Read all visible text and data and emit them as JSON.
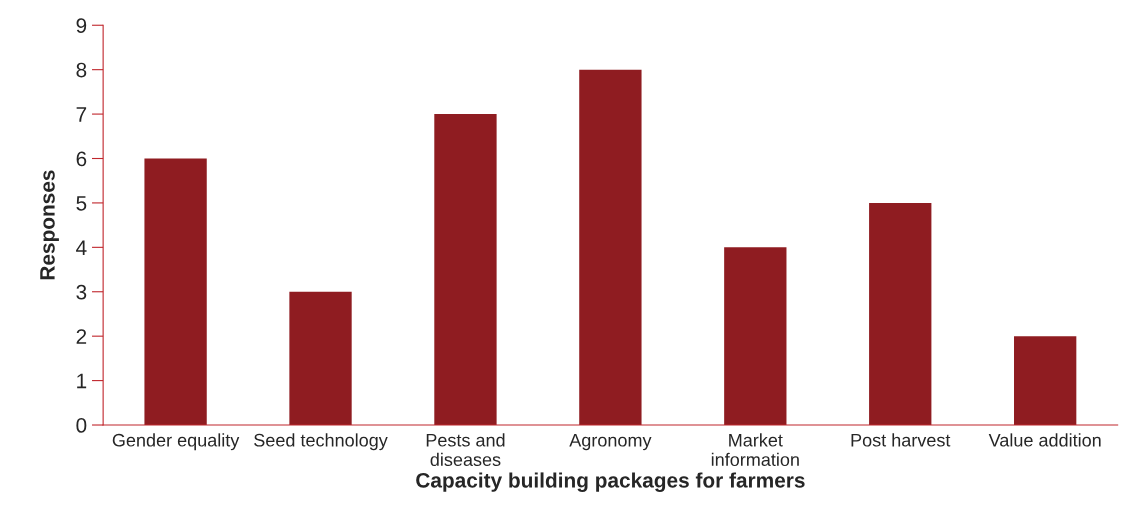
{
  "chart_data": {
    "type": "bar",
    "xlabel": "Capacity building packages for farmers",
    "ylabel": "Responses",
    "categories": [
      "Gender equality",
      "Seed technology",
      "Pests and\ndiseases",
      "Agronomy",
      "Market\ninformation",
      "Post harvest",
      "Value addition"
    ],
    "values": [
      6,
      3,
      7,
      8,
      4,
      5,
      2
    ],
    "color": "#8f1c21",
    "ylim": [
      0,
      9
    ],
    "yticks": [
      0,
      1,
      2,
      3,
      4,
      5,
      6,
      7,
      8,
      9
    ],
    "grid": false,
    "legend": false
  }
}
